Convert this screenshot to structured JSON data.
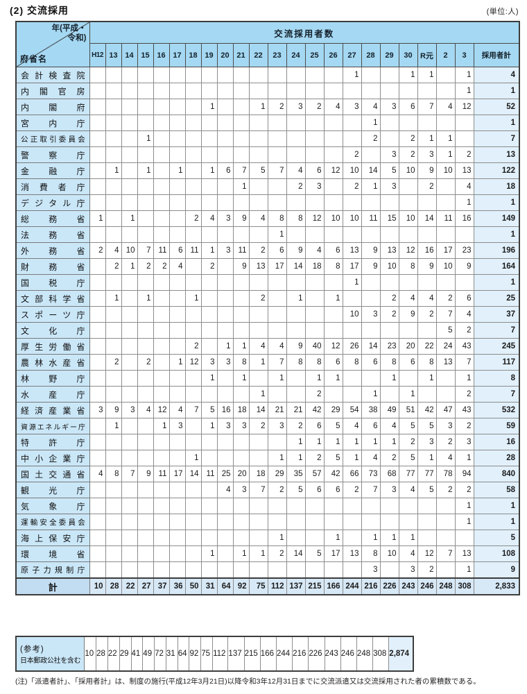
{
  "page": {
    "title": "(2) 交流採用",
    "unit_label": "(単位:人)"
  },
  "table": {
    "corner": {
      "year_label_line1": "年(平成・",
      "year_label_line2": "令和)",
      "ministry_label": "府省名"
    },
    "group_header": "交流採用者数",
    "year_columns": [
      "H12",
      "13",
      "14",
      "15",
      "16",
      "17",
      "18",
      "19",
      "20",
      "21",
      "22",
      "23",
      "24",
      "25",
      "26",
      "27",
      "28",
      "29",
      "30",
      "R元",
      "2",
      "3"
    ],
    "total_column_label": "採用者計",
    "rows": [
      {
        "name": "会計検査院",
        "values": [
          "",
          "",
          "",
          "",
          "",
          "",
          "",
          "",
          "",
          "",
          "",
          "",
          "",
          "",
          "",
          "1",
          "",
          "",
          "1",
          "1",
          "",
          "1"
        ],
        "total": "4"
      },
      {
        "name": "内閣官房",
        "values": [
          "",
          "",
          "",
          "",
          "",
          "",
          "",
          "",
          "",
          "",
          "",
          "",
          "",
          "",
          "",
          "",
          "",
          "",
          "",
          "",
          "",
          "1"
        ],
        "total": "1"
      },
      {
        "name": "内閣府",
        "values": [
          "",
          "",
          "",
          "",
          "",
          "",
          "",
          "1",
          "",
          "",
          "1",
          "2",
          "3",
          "2",
          "4",
          "3",
          "4",
          "3",
          "6",
          "7",
          "4",
          "12"
        ],
        "total": "52"
      },
      {
        "name": "宮内庁",
        "values": [
          "",
          "",
          "",
          "",
          "",
          "",
          "",
          "",
          "",
          "",
          "",
          "",
          "",
          "",
          "",
          "",
          "1",
          "",
          "",
          "",
          "",
          ""
        ],
        "total": "1"
      },
      {
        "name": "公正取引委員会",
        "values": [
          "",
          "",
          "",
          "1",
          "",
          "",
          "",
          "",
          "",
          "",
          "",
          "",
          "",
          "",
          "",
          "",
          "2",
          "",
          "2",
          "1",
          "1",
          ""
        ],
        "total": "7"
      },
      {
        "name": "警察庁",
        "values": [
          "",
          "",
          "",
          "",
          "",
          "",
          "",
          "",
          "",
          "",
          "",
          "",
          "",
          "",
          "",
          "2",
          "",
          "3",
          "2",
          "3",
          "1",
          "2"
        ],
        "total": "13"
      },
      {
        "name": "金融庁",
        "values": [
          "",
          "1",
          "",
          "1",
          "",
          "1",
          "",
          "1",
          "6",
          "7",
          "5",
          "7",
          "4",
          "6",
          "12",
          "10",
          "14",
          "5",
          "10",
          "9",
          "10",
          "13"
        ],
        "total": "122"
      },
      {
        "name": "消費者庁",
        "values": [
          "",
          "",
          "",
          "",
          "",
          "",
          "",
          "",
          "",
          "1",
          "",
          "",
          "2",
          "3",
          "",
          "2",
          "1",
          "3",
          "",
          "2",
          "",
          "4"
        ],
        "total": "18"
      },
      {
        "name": "デジタル庁",
        "values": [
          "",
          "",
          "",
          "",
          "",
          "",
          "",
          "",
          "",
          "",
          "",
          "",
          "",
          "",
          "",
          "",
          "",
          "",
          "",
          "",
          "",
          "1"
        ],
        "total": "1"
      },
      {
        "name": "総務省",
        "values": [
          "1",
          "",
          "1",
          "",
          "",
          "",
          "2",
          "4",
          "3",
          "9",
          "4",
          "8",
          "8",
          "12",
          "10",
          "10",
          "11",
          "15",
          "10",
          "14",
          "11",
          "16"
        ],
        "total": "149"
      },
      {
        "name": "法務省",
        "values": [
          "",
          "",
          "",
          "",
          "",
          "",
          "",
          "",
          "",
          "",
          "",
          "1",
          "",
          "",
          "",
          "",
          "",
          "",
          "",
          "",
          "",
          ""
        ],
        "total": "1"
      },
      {
        "name": "外務省",
        "values": [
          "2",
          "4",
          "10",
          "7",
          "11",
          "6",
          "11",
          "1",
          "3",
          "11",
          "2",
          "6",
          "9",
          "4",
          "6",
          "13",
          "9",
          "13",
          "12",
          "16",
          "17",
          "23"
        ],
        "total": "196"
      },
      {
        "name": "財務省",
        "values": [
          "",
          "2",
          "1",
          "2",
          "2",
          "4",
          "",
          "2",
          "",
          "9",
          "13",
          "17",
          "14",
          "18",
          "8",
          "17",
          "9",
          "10",
          "8",
          "9",
          "10",
          "9"
        ],
        "total": "164"
      },
      {
        "name": "国税庁",
        "values": [
          "",
          "",
          "",
          "",
          "",
          "",
          "",
          "",
          "",
          "",
          "",
          "",
          "",
          "",
          "",
          "1",
          "",
          "",
          "",
          "",
          "",
          ""
        ],
        "total": "1"
      },
      {
        "name": "文部科学省",
        "values": [
          "",
          "1",
          "",
          "1",
          "",
          "",
          "1",
          "",
          "",
          "",
          "2",
          "",
          "1",
          "",
          "1",
          "",
          "",
          "2",
          "4",
          "4",
          "2",
          "6"
        ],
        "total": "25"
      },
      {
        "name": "スポーツ庁",
        "values": [
          "",
          "",
          "",
          "",
          "",
          "",
          "",
          "",
          "",
          "",
          "",
          "",
          "",
          "",
          "",
          "10",
          "3",
          "2",
          "9",
          "2",
          "7",
          "4"
        ],
        "total": "37"
      },
      {
        "name": "文化庁",
        "values": [
          "",
          "",
          "",
          "",
          "",
          "",
          "",
          "",
          "",
          "",
          "",
          "",
          "",
          "",
          "",
          "",
          "",
          "",
          "",
          "",
          "5",
          "2"
        ],
        "total": "7"
      },
      {
        "name": "厚生労働省",
        "values": [
          "",
          "",
          "",
          "",
          "",
          "",
          "2",
          "",
          "1",
          "1",
          "4",
          "4",
          "9",
          "40",
          "12",
          "26",
          "14",
          "23",
          "20",
          "22",
          "24",
          "43"
        ],
        "total": "245"
      },
      {
        "name": "農林水産省",
        "values": [
          "",
          "2",
          "",
          "2",
          "",
          "1",
          "12",
          "3",
          "3",
          "8",
          "1",
          "7",
          "8",
          "8",
          "6",
          "8",
          "6",
          "8",
          "6",
          "8",
          "13",
          "7"
        ],
        "total": "117"
      },
      {
        "name": "林野庁",
        "values": [
          "",
          "",
          "",
          "",
          "",
          "",
          "",
          "1",
          "",
          "1",
          "",
          "1",
          "",
          "1",
          "1",
          "",
          "",
          "1",
          "",
          "1",
          "",
          "1"
        ],
        "total": "8"
      },
      {
        "name": "水産庁",
        "values": [
          "",
          "",
          "",
          "",
          "",
          "",
          "",
          "",
          "",
          "",
          "1",
          "",
          "",
          "2",
          "",
          "",
          "1",
          "",
          "1",
          "",
          "",
          "2"
        ],
        "total": "7"
      },
      {
        "name": "経済産業省",
        "values": [
          "3",
          "9",
          "3",
          "4",
          "12",
          "4",
          "7",
          "5",
          "16",
          "18",
          "14",
          "21",
          "21",
          "42",
          "29",
          "54",
          "38",
          "49",
          "51",
          "42",
          "47",
          "43"
        ],
        "total": "532"
      },
      {
        "name": "資源エネルギー庁",
        "values": [
          "",
          "1",
          "",
          "",
          "1",
          "3",
          "",
          "1",
          "3",
          "3",
          "2",
          "3",
          "2",
          "6",
          "5",
          "4",
          "6",
          "4",
          "5",
          "5",
          "3",
          "2"
        ],
        "total": "59"
      },
      {
        "name": "特許庁",
        "values": [
          "",
          "",
          "",
          "",
          "",
          "",
          "",
          "",
          "",
          "",
          "",
          "",
          "1",
          "1",
          "1",
          "1",
          "1",
          "1",
          "2",
          "3",
          "2",
          "3"
        ],
        "total": "16"
      },
      {
        "name": "中小企業庁",
        "values": [
          "",
          "",
          "",
          "",
          "",
          "",
          "1",
          "",
          "",
          "",
          "",
          "1",
          "1",
          "2",
          "5",
          "1",
          "4",
          "2",
          "5",
          "1",
          "4",
          "1"
        ],
        "total": "28"
      },
      {
        "name": "国土交通省",
        "values": [
          "4",
          "8",
          "7",
          "9",
          "11",
          "17",
          "14",
          "11",
          "25",
          "20",
          "18",
          "29",
          "35",
          "57",
          "42",
          "66",
          "73",
          "68",
          "77",
          "77",
          "78",
          "94"
        ],
        "total": "840"
      },
      {
        "name": "観光庁",
        "values": [
          "",
          "",
          "",
          "",
          "",
          "",
          "",
          "",
          "4",
          "3",
          "7",
          "2",
          "5",
          "6",
          "6",
          "2",
          "7",
          "3",
          "4",
          "5",
          "2",
          "2"
        ],
        "total": "58"
      },
      {
        "name": "気象庁",
        "values": [
          "",
          "",
          "",
          "",
          "",
          "",
          "",
          "",
          "",
          "",
          "",
          "",
          "",
          "",
          "",
          "",
          "",
          "",
          "",
          "",
          "",
          "1"
        ],
        "total": "1"
      },
      {
        "name": "運輸安全委員会",
        "values": [
          "",
          "",
          "",
          "",
          "",
          "",
          "",
          "",
          "",
          "",
          "",
          "",
          "",
          "",
          "",
          "",
          "",
          "",
          "",
          "",
          "",
          "1"
        ],
        "total": "1"
      },
      {
        "name": "海上保安庁",
        "values": [
          "",
          "",
          "",
          "",
          "",
          "",
          "",
          "",
          "",
          "",
          "",
          "1",
          "",
          "",
          "1",
          "",
          "1",
          "1",
          "1",
          "",
          "",
          ""
        ],
        "total": "5"
      },
      {
        "name": "環境省",
        "values": [
          "",
          "",
          "",
          "",
          "",
          "",
          "",
          "1",
          "",
          "1",
          "1",
          "2",
          "14",
          "5",
          "17",
          "13",
          "8",
          "10",
          "4",
          "12",
          "7",
          "13"
        ],
        "total": "108"
      },
      {
        "name": "原子力規制庁",
        "values": [
          "",
          "",
          "",
          "",
          "",
          "",
          "",
          "",
          "",
          "",
          "",
          "",
          "",
          "",
          "",
          "",
          "3",
          "",
          "3",
          "2",
          "",
          "1"
        ],
        "total": "9"
      }
    ],
    "total_row": {
      "label": "計",
      "values": [
        "10",
        "28",
        "22",
        "27",
        "37",
        "36",
        "50",
        "31",
        "64",
        "92",
        "75",
        "112",
        "137",
        "215",
        "166",
        "244",
        "216",
        "226",
        "243",
        "246",
        "248",
        "308"
      ],
      "total": "2,833"
    }
  },
  "reference": {
    "label_line1": "(参考)",
    "label_line2": "日本郵政公社を含む",
    "values": [
      "10",
      "28",
      "22",
      "29",
      "41",
      "49",
      "72",
      "31",
      "64",
      "92",
      "75",
      "112",
      "137",
      "215",
      "166",
      "244",
      "216",
      "226",
      "243",
      "246",
      "248",
      "308"
    ],
    "total": "2,874"
  },
  "note": "(注)「派遣者計」、「採用者計」は、制度の施行(平成12年3月21日)以降令和3年12月31日までに交流派遣又は交流採用された者の累積数である。"
}
